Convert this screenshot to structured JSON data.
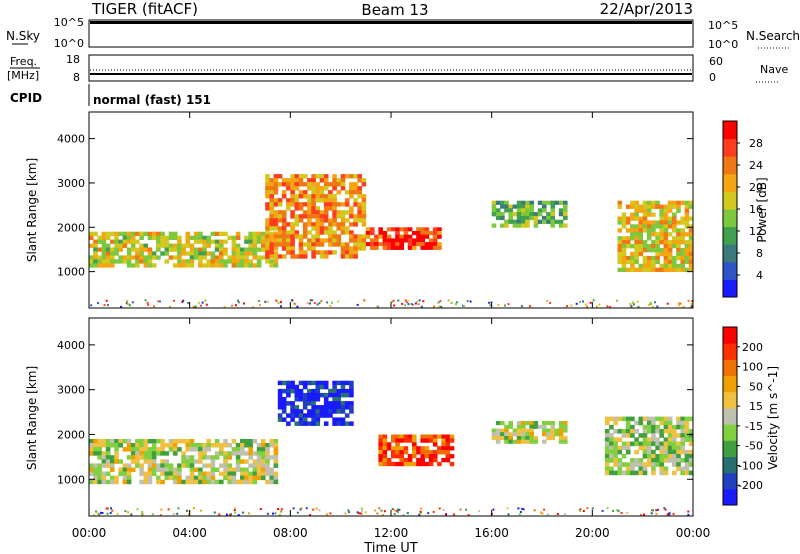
{
  "header": {
    "radar": "TIGER (fitACF)",
    "beam": "Beam 13",
    "date": "22/Apr/2013"
  },
  "strips": {
    "nsky_label": "N.Sky",
    "nsky_ticks": [
      "10^5",
      "10^0"
    ],
    "nsearch_label": "N.Search",
    "nsearch_ticks": [
      "10^5",
      "10^0"
    ],
    "freq_label_1": "Freq.",
    "freq_label_2": "[MHz]",
    "freq_ticks": [
      "18",
      "8"
    ],
    "nave_label": "Nave",
    "nave_ticks": [
      "60",
      "0"
    ],
    "cpid_label": "CPID",
    "cpid_value": "normal (fast) 151"
  },
  "chart_data": [
    {
      "type": "heatmap",
      "name": "power",
      "ylabel": "Slant Range [km]",
      "yticks": [
        "1000",
        "2000",
        "3000",
        "4000"
      ],
      "colorbar_label": "Power [dB]",
      "colorbar_ticks": [
        "4",
        "8",
        "12",
        "16",
        "20",
        "24",
        "28"
      ],
      "colors": [
        "#1a1aff",
        "#2b55c8",
        "#3a7a7a",
        "#40a050",
        "#7dc83c",
        "#d2c81e",
        "#f5a514",
        "#f07814",
        "#ff3c1e",
        "#ff0000"
      ],
      "regions": [
        {
          "t0": 0.0,
          "t1": 7.5,
          "r0": 1100,
          "r1": 1900,
          "level": 0.55
        },
        {
          "t0": 7.0,
          "t1": 11.0,
          "r0": 1300,
          "r1": 3200,
          "level": 0.7
        },
        {
          "t0": 11.0,
          "t1": 14.0,
          "r0": 1500,
          "r1": 2000,
          "level": 0.85
        },
        {
          "t0": 16.0,
          "t1": 19.0,
          "r0": 2000,
          "r1": 2600,
          "level": 0.4
        },
        {
          "t0": 21.0,
          "t1": 24.0,
          "r0": 1000,
          "r1": 2600,
          "level": 0.6
        }
      ]
    },
    {
      "type": "heatmap",
      "name": "velocity",
      "ylabel": "Slant Range [km]",
      "yticks": [
        "1000",
        "2000",
        "3000",
        "4000"
      ],
      "colorbar_label": "Velocity [m s^-1]",
      "colorbar_ticks": [
        "200",
        "100",
        "50",
        "15",
        "-15",
        "-50",
        "-100",
        "-200"
      ],
      "colors": [
        "#1a1aff",
        "#2040c0",
        "#287070",
        "#40a040",
        "#80d040",
        "#c0c0b0",
        "#f0c040",
        "#f0a000",
        "#f07000",
        "#ff3000",
        "#ff0000"
      ],
      "regions": [
        {
          "t0": 0.0,
          "t1": 7.5,
          "r0": 900,
          "r1": 1900,
          "level": 0.5
        },
        {
          "t0": 7.5,
          "t1": 10.5,
          "r0": 2200,
          "r1": 3200,
          "level": 0.05
        },
        {
          "t0": 11.5,
          "t1": 14.5,
          "r0": 1300,
          "r1": 2000,
          "level": 0.85
        },
        {
          "t0": 16.0,
          "t1": 19.0,
          "r0": 1800,
          "r1": 2300,
          "level": 0.5
        },
        {
          "t0": 20.5,
          "t1": 24.0,
          "r0": 1100,
          "r1": 2400,
          "level": 0.45
        }
      ]
    }
  ],
  "xaxis": {
    "ticks": [
      "00:00",
      "04:00",
      "08:00",
      "12:00",
      "16:00",
      "20:00",
      "00:00"
    ],
    "label": "Time UT"
  }
}
